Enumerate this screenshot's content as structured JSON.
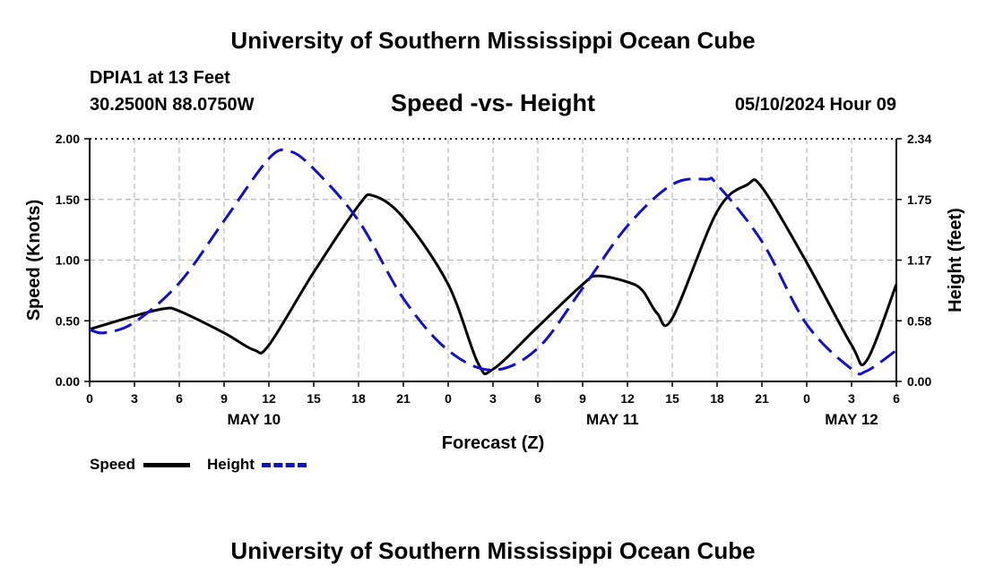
{
  "header": {
    "title": "University of Southern Mississippi Ocean Cube",
    "station": "DPIA1 at 13 Feet",
    "coordinates": "30.2500N  88.0750W",
    "datetime": "05/10/2024 Hour 09"
  },
  "footer": {
    "title": "University of Southern Mississippi Ocean Cube"
  },
  "legend": {
    "speed": "Speed",
    "height": "Height"
  },
  "colors": {
    "speed": "#000000",
    "height": "#1010cc",
    "grid": "#b8b8b8"
  },
  "chart_data": {
    "type": "line",
    "title": "Speed -vs- Height",
    "xlabel": "Forecast (Z)",
    "ylabel_left": "Speed (Knots)",
    "ylabel_right": "Height (feet)",
    "x_hours_range": [
      0,
      54
    ],
    "ylim_left": [
      0,
      2
    ],
    "ylim_right": [
      0,
      2.34
    ],
    "x_tick_labels": [
      "0",
      "3",
      "6",
      "9",
      "12",
      "15",
      "18",
      "21",
      "0",
      "3",
      "6",
      "9",
      "12",
      "15",
      "18",
      "21",
      "0",
      "3",
      "6"
    ],
    "date_labels": [
      {
        "hour": 11,
        "label": "MAY 10"
      },
      {
        "hour": 35,
        "label": "MAY 11"
      },
      {
        "hour": 51,
        "label": "MAY 12"
      }
    ],
    "left_ticks": [
      {
        "value": 0,
        "label": "0.00"
      },
      {
        "value": 0.5,
        "label": "0.50"
      },
      {
        "value": 1,
        "label": "1.00"
      },
      {
        "value": 1.5,
        "label": "1.50"
      },
      {
        "value": 2,
        "label": "2.00"
      }
    ],
    "right_ticks": [
      {
        "value": 0,
        "label": "0.00"
      },
      {
        "value": 0.585,
        "label": "0.58"
      },
      {
        "value": 1.17,
        "label": "1.17"
      },
      {
        "value": 1.755,
        "label": "1.75"
      },
      {
        "value": 2.34,
        "label": "2.34"
      }
    ],
    "grid": true,
    "series": [
      {
        "name": "Speed",
        "axis": "left",
        "style": "solid",
        "hours": [
          0,
          3,
          5,
          6,
          9,
          11,
          12,
          15,
          18,
          19,
          21,
          24,
          26,
          27,
          30,
          33,
          34,
          36,
          37,
          38,
          39,
          42,
          44,
          45,
          48,
          51,
          52,
          54
        ],
        "values": [
          0.43,
          0.54,
          0.6,
          0.58,
          0.4,
          0.26,
          0.3,
          0.9,
          1.45,
          1.53,
          1.35,
          0.8,
          0.15,
          0.1,
          0.45,
          0.8,
          0.87,
          0.82,
          0.75,
          0.56,
          0.52,
          1.4,
          1.62,
          1.6,
          0.98,
          0.3,
          0.17,
          0.8
        ]
      },
      {
        "name": "Height",
        "axis": "right",
        "style": "dashed",
        "hours": [
          0,
          1,
          3,
          6,
          9,
          12,
          13.4,
          15,
          18,
          21,
          24,
          27,
          30,
          33,
          36,
          39,
          41.3,
          42,
          45,
          48,
          51,
          52,
          54
        ],
        "values": [
          0.5,
          0.47,
          0.57,
          0.95,
          1.55,
          2.15,
          2.22,
          2.05,
          1.55,
          0.8,
          0.3,
          0.11,
          0.32,
          0.9,
          1.5,
          1.9,
          1.95,
          1.9,
          1.35,
          0.55,
          0.12,
          0.1,
          0.3
        ]
      }
    ]
  }
}
